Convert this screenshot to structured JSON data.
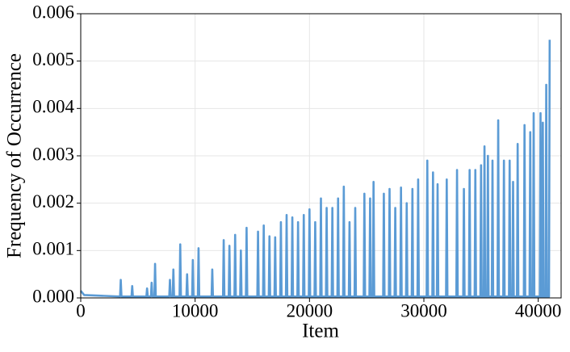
{
  "chart_data": {
    "type": "line",
    "xlabel": "Item",
    "ylabel": "Frequency of Occurrence",
    "xlim": [
      0,
      42000
    ],
    "ylim": [
      0,
      0.006
    ],
    "xticks": [
      0,
      10000,
      20000,
      30000,
      40000
    ],
    "yticks": [
      {
        "value": 0,
        "label": "0.000"
      },
      {
        "value": 0.001,
        "label": "0.001"
      },
      {
        "value": 0.002,
        "label": "0.002"
      },
      {
        "value": 0.003,
        "label": "0.003"
      },
      {
        "value": 0.004,
        "label": "0.004"
      },
      {
        "value": 0.005,
        "label": "0.005"
      },
      {
        "value": 0.006,
        "label": "0.006"
      }
    ],
    "grid": true,
    "x": [
      0,
      300,
      3440,
      3500,
      3560,
      4440,
      4500,
      4560,
      5740,
      5800,
      5860,
      6140,
      6200,
      6260,
      6440,
      6500,
      6560,
      7740,
      7800,
      7860,
      8040,
      8100,
      8160,
      8640,
      8700,
      8760,
      9240,
      9300,
      9360,
      9740,
      9800,
      9860,
      10240,
      10300,
      10360,
      11440,
      11500,
      11560,
      12440,
      12500,
      12560,
      12940,
      13000,
      13060,
      13440,
      13500,
      13560,
      13940,
      14000,
      14060,
      14440,
      14500,
      14560,
      15440,
      15500,
      15560,
      15940,
      16000,
      16060,
      16440,
      16500,
      16560,
      16940,
      17000,
      17060,
      17440,
      17500,
      17560,
      17940,
      18000,
      18060,
      18440,
      18500,
      18560,
      18940,
      19000,
      19060,
      19440,
      19500,
      19560,
      19940,
      20000,
      20060,
      20440,
      20500,
      20560,
      20940,
      21000,
      21060,
      21440,
      21500,
      21560,
      21940,
      22000,
      22060,
      22440,
      22500,
      22560,
      22940,
      23000,
      23060,
      23440,
      23500,
      23560,
      23940,
      24000,
      24060,
      24740,
      24800,
      24860,
      25240,
      25300,
      25360,
      25540,
      25600,
      25660,
      26440,
      26500,
      26560,
      26940,
      27000,
      27060,
      27440,
      27500,
      27560,
      27940,
      28000,
      28060,
      28440,
      28500,
      28560,
      28940,
      29000,
      29060,
      29440,
      29500,
      29560,
      30240,
      30300,
      30360,
      30740,
      30800,
      30860,
      31140,
      31200,
      31260,
      31940,
      32000,
      32060,
      32840,
      32900,
      32960,
      33440,
      33500,
      33560,
      33940,
      34000,
      34060,
      34440,
      34500,
      34560,
      34940,
      35000,
      35060,
      35240,
      35300,
      35360,
      35540,
      35600,
      35660,
      35940,
      36000,
      36060,
      36440,
      36500,
      36560,
      36940,
      37000,
      37060,
      37440,
      37500,
      37560,
      37740,
      37800,
      37860,
      38140,
      38200,
      38260,
      38740,
      38800,
      38860,
      39240,
      39300,
      39360,
      39540,
      39600,
      39660,
      40140,
      40200,
      40260,
      40340,
      40400,
      40460,
      40640,
      40700,
      40760,
      40940,
      41000
    ],
    "series": [
      {
        "color": "#5b9bd5",
        "values": [
          0.00015,
          6e-05,
          3e-05,
          0.00038,
          3e-05,
          3e-05,
          0.00025,
          3e-05,
          3e-05,
          0.0002,
          3e-05,
          3e-05,
          0.00032,
          3e-05,
          3e-05,
          0.00072,
          3e-05,
          3e-05,
          0.00038,
          3e-05,
          3e-05,
          0.0006,
          3e-05,
          3e-05,
          0.00113,
          3e-05,
          3e-05,
          0.0005,
          3e-05,
          3e-05,
          0.0008,
          3e-05,
          3e-05,
          0.00105,
          3e-05,
          3e-05,
          0.0006,
          3e-05,
          3e-05,
          0.00122,
          3e-05,
          3e-05,
          0.0011,
          3e-05,
          3e-05,
          0.00133,
          3e-05,
          3e-05,
          0.001,
          3e-05,
          3e-05,
          0.00148,
          3e-05,
          3e-05,
          0.0014,
          3e-05,
          3e-05,
          0.00153,
          3e-05,
          3e-05,
          0.0013,
          3e-05,
          3e-05,
          0.00128,
          3e-05,
          3e-05,
          0.0016,
          3e-05,
          3e-05,
          0.00175,
          3e-05,
          3e-05,
          0.0017,
          3e-05,
          3e-05,
          0.0016,
          3e-05,
          3e-05,
          0.00175,
          3e-05,
          3e-05,
          0.00187,
          3e-05,
          3e-05,
          0.0016,
          3e-05,
          3e-05,
          0.0021,
          3e-05,
          3e-05,
          0.0019,
          3e-05,
          3e-05,
          0.0019,
          3e-05,
          3e-05,
          0.0021,
          3e-05,
          3e-05,
          0.00235,
          3e-05,
          3e-05,
          0.0016,
          3e-05,
          3e-05,
          0.0019,
          3e-05,
          3e-05,
          0.0022,
          3e-05,
          3e-05,
          0.0021,
          3e-05,
          3e-05,
          0.00245,
          3e-05,
          3e-05,
          0.0022,
          3e-05,
          3e-05,
          0.0023,
          3e-05,
          3e-05,
          0.0019,
          3e-05,
          3e-05,
          0.00233,
          3e-05,
          3e-05,
          0.002,
          3e-05,
          3e-05,
          0.0023,
          3e-05,
          3e-05,
          0.0025,
          3e-05,
          3e-05,
          0.0029,
          3e-05,
          3e-05,
          0.00265,
          3e-05,
          3e-05,
          0.0024,
          3e-05,
          3e-05,
          0.0025,
          3e-05,
          3e-05,
          0.0027,
          3e-05,
          3e-05,
          0.0023,
          3e-05,
          3e-05,
          0.0027,
          3e-05,
          3e-05,
          0.0027,
          3e-05,
          3e-05,
          0.0028,
          3e-05,
          3e-05,
          0.0032,
          3e-05,
          3e-05,
          0.003,
          3e-05,
          3e-05,
          0.0029,
          3e-05,
          3e-05,
          0.00375,
          3e-05,
          3e-05,
          0.0029,
          3e-05,
          3e-05,
          0.0029,
          3e-05,
          3e-05,
          0.00245,
          3e-05,
          3e-05,
          0.00325,
          3e-05,
          3e-05,
          0.00365,
          3e-05,
          3e-05,
          0.0035,
          3e-05,
          3e-05,
          0.0039,
          3e-05,
          3e-05,
          0.0039,
          3e-05,
          3e-05,
          0.0037,
          3e-05,
          3e-05,
          0.0045,
          3e-05,
          3e-05,
          0.00545
        ]
      }
    ]
  }
}
